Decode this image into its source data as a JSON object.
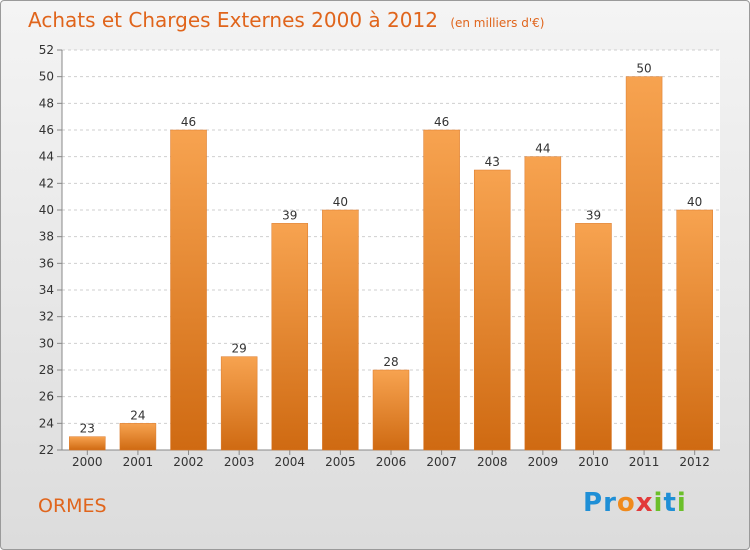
{
  "chart_data": {
    "type": "bar",
    "title": "Achats et Charges Externes 2000 à 2012",
    "unit": "(en milliers d'€)",
    "categories": [
      "2000",
      "2001",
      "2002",
      "2003",
      "2004",
      "2005",
      "2006",
      "2007",
      "2008",
      "2009",
      "2010",
      "2011",
      "2012"
    ],
    "values": [
      23,
      24,
      46,
      29,
      39,
      40,
      28,
      46,
      43,
      44,
      39,
      50,
      40
    ],
    "ylim": [
      22,
      52
    ],
    "yticks": [
      22,
      24,
      26,
      28,
      30,
      32,
      34,
      36,
      38,
      40,
      42,
      44,
      46,
      48,
      50,
      52
    ],
    "grid": true,
    "bar_color": "#f0963f"
  },
  "footer": {
    "city": "ORMES",
    "logo_letters": [
      {
        "ch": "P",
        "color": "#1f8fd6"
      },
      {
        "ch": "r",
        "color": "#1f8fd6"
      },
      {
        "ch": "o",
        "color": "#f08a1c"
      },
      {
        "ch": "x",
        "color": "#e23a3a"
      },
      {
        "ch": "i",
        "color": "#6bbf2a"
      },
      {
        "ch": "t",
        "color": "#1f8fd6"
      },
      {
        "ch": "i",
        "color": "#6bbf2a"
      }
    ]
  }
}
